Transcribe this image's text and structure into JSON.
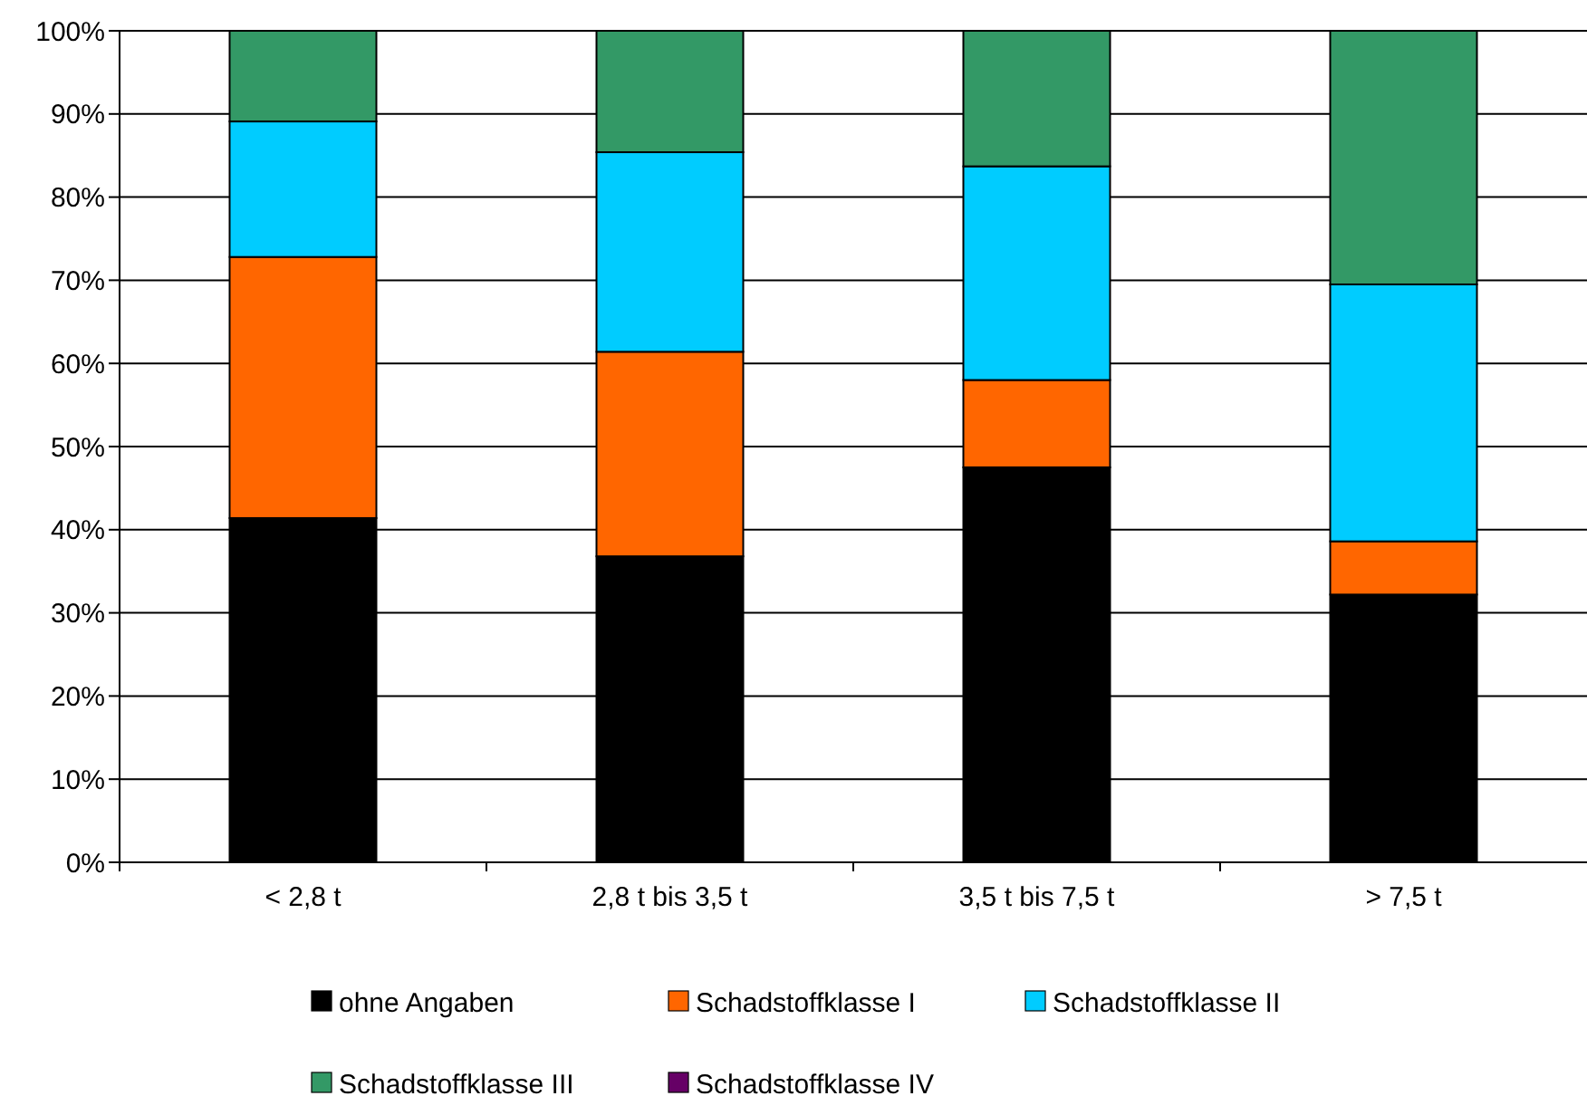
{
  "chart_data": {
    "type": "bar",
    "stacked": true,
    "categories": [
      "< 2,8 t",
      "2,8 t bis 3,5 t",
      "3,5 t bis 7,5 t",
      "> 7,5 t"
    ],
    "series": [
      {
        "name": "ohne Angaben",
        "color": "#000000",
        "values": [
          41.4,
          36.8,
          47.5,
          32.2
        ]
      },
      {
        "name": "Schadstoffklasse I",
        "color": "#ff6600",
        "values": [
          31.4,
          24.6,
          10.5,
          6.4
        ]
      },
      {
        "name": "Schadstoffklasse II",
        "color": "#00ccff",
        "values": [
          16.3,
          24.0,
          25.7,
          30.9
        ]
      },
      {
        "name": "Schadstoffklasse III",
        "color": "#339966",
        "values": [
          10.9,
          14.6,
          16.3,
          30.5
        ]
      },
      {
        "name": "Schadstoffklasse IV",
        "color": "#660066",
        "values": [
          0,
          0,
          0,
          0
        ]
      }
    ],
    "ylim": [
      0,
      100
    ],
    "yticks": [
      {
        "value": 0,
        "label": "0%"
      },
      {
        "value": 10,
        "label": "10%"
      },
      {
        "value": 20,
        "label": "20%"
      },
      {
        "value": 30,
        "label": "30%"
      },
      {
        "value": 40,
        "label": "40%"
      },
      {
        "value": 50,
        "label": "50%"
      },
      {
        "value": 60,
        "label": "60%"
      },
      {
        "value": 70,
        "label": "70%"
      },
      {
        "value": 80,
        "label": "80%"
      },
      {
        "value": 90,
        "label": "90%"
      },
      {
        "value": 100,
        "label": "100%"
      }
    ],
    "grid": "y",
    "legend": "bottom"
  }
}
